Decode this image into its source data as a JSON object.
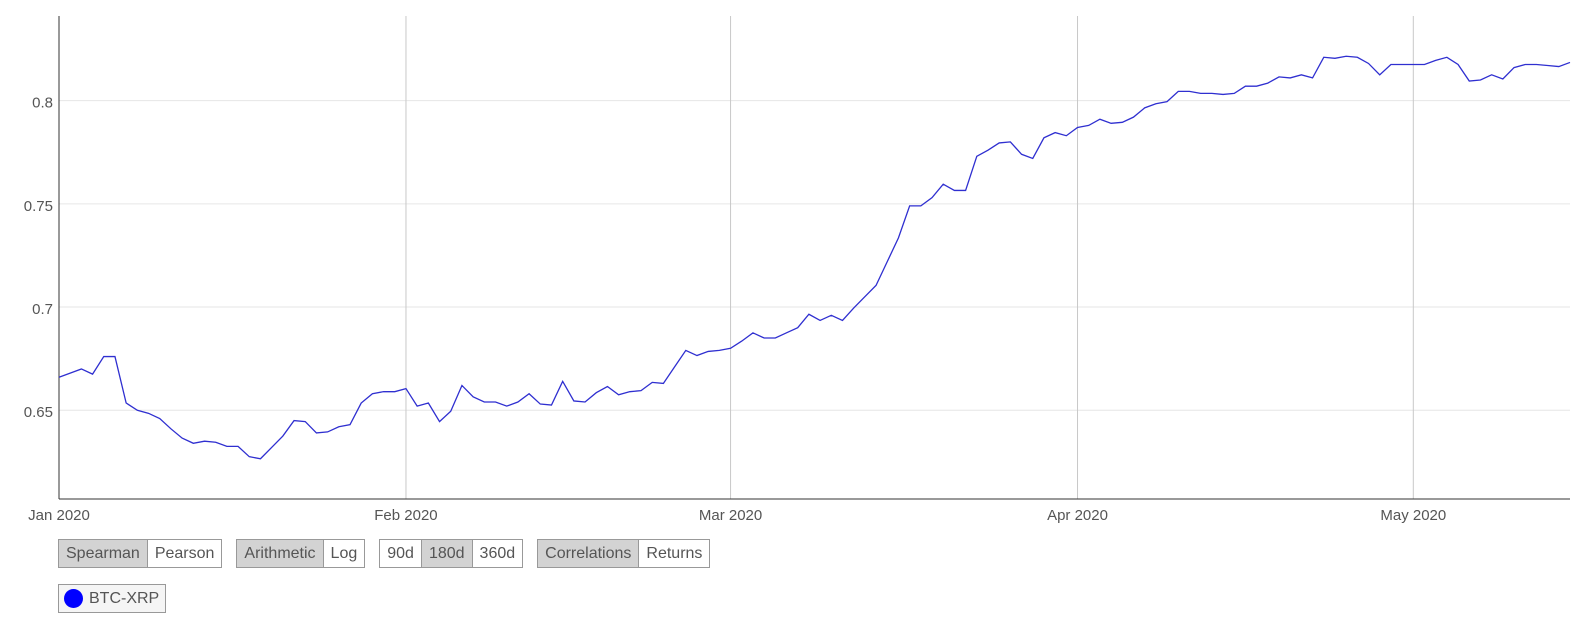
{
  "chart_data": {
    "type": "line",
    "series": [
      {
        "name": "BTC-XRP",
        "color": "#2f2fd0",
        "values": [
          0.666,
          0.668,
          0.67,
          0.6675,
          0.676,
          0.676,
          0.6535,
          0.65,
          0.6485,
          0.646,
          0.641,
          0.6365,
          0.634,
          0.635,
          0.6345,
          0.6325,
          0.6325,
          0.6275,
          0.6265,
          0.632,
          0.6375,
          0.645,
          0.6445,
          0.639,
          0.6395,
          0.642,
          0.643,
          0.6535,
          0.658,
          0.659,
          0.659,
          0.6605,
          0.652,
          0.6535,
          0.6445,
          0.6495,
          0.662,
          0.6565,
          0.654,
          0.654,
          0.652,
          0.654,
          0.658,
          0.653,
          0.6525,
          0.664,
          0.6545,
          0.654,
          0.6585,
          0.6615,
          0.6575,
          0.659,
          0.6595,
          0.6635,
          0.663,
          0.671,
          0.679,
          0.6765,
          0.6785,
          0.679,
          0.68,
          0.6835,
          0.6875,
          0.685,
          0.685,
          0.6875,
          0.69,
          0.6965,
          0.6935,
          0.696,
          0.6935,
          0.6995,
          0.705,
          0.7105,
          0.722,
          0.7335,
          0.749,
          0.749,
          0.753,
          0.7595,
          0.7565,
          0.7565,
          0.773,
          0.776,
          0.7795,
          0.78,
          0.774,
          0.772,
          0.782,
          0.7845,
          0.783,
          0.787,
          0.788,
          0.791,
          0.789,
          0.7895,
          0.792,
          0.7965,
          0.7985,
          0.7995,
          0.8045,
          0.8045,
          0.8035,
          0.8035,
          0.803,
          0.8035,
          0.807,
          0.807,
          0.8085,
          0.8115,
          0.811,
          0.8125,
          0.811,
          0.821,
          0.8205,
          0.8215,
          0.821,
          0.818,
          0.8125,
          0.8175,
          0.8175,
          0.8175,
          0.8175,
          0.8195,
          0.821,
          0.8175,
          0.8095,
          0.81,
          0.8125,
          0.8105,
          0.816,
          0.8175,
          0.8175,
          0.817,
          0.8165,
          0.8185
        ]
      }
    ],
    "xlim": [
      0,
      135
    ],
    "xticks": [
      {
        "value": 0,
        "label": "Jan 2020"
      },
      {
        "value": 31,
        "label": "Feb 2020"
      },
      {
        "value": 60,
        "label": "Mar 2020"
      },
      {
        "value": 91,
        "label": "Apr 2020"
      },
      {
        "value": 121,
        "label": "May 2020"
      }
    ],
    "ylim": [
      0.607,
      0.841
    ],
    "yticks": [
      0.65,
      0.7,
      0.75,
      0.8
    ],
    "grid": true,
    "legend_marker_color": "#0000ff"
  },
  "controls": {
    "groups": [
      {
        "options": [
          "Spearman",
          "Pearson"
        ],
        "active": 0
      },
      {
        "options": [
          "Arithmetic",
          "Log"
        ],
        "active": 0
      },
      {
        "options": [
          "90d",
          "180d",
          "360d"
        ],
        "active": 1
      },
      {
        "options": [
          "Correlations",
          "Returns"
        ],
        "active": 0
      }
    ]
  }
}
